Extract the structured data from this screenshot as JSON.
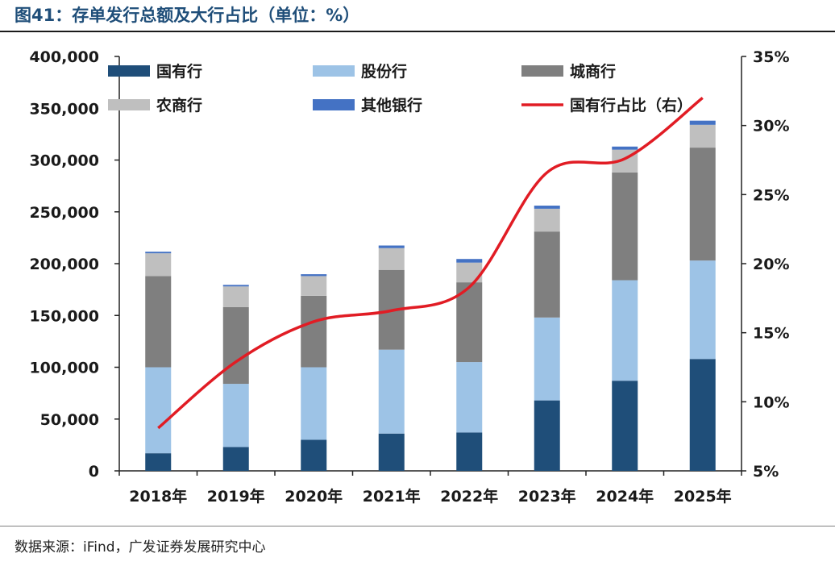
{
  "title": "图41：存单发行总额及大行占比（单位：%）",
  "source": "数据来源：iFind，广发证券发展研究中心",
  "chart_data": {
    "type": "bar",
    "stacked": true,
    "categories": [
      "2018年",
      "2019年",
      "2020年",
      "2021年",
      "2022年",
      "2023年",
      "2024年",
      "2025年"
    ],
    "series": [
      {
        "name": "国有行",
        "color": "#1f4e79",
        "values": [
          17000,
          23000,
          30000,
          36000,
          37000,
          68000,
          87000,
          108000
        ]
      },
      {
        "name": "股份行",
        "color": "#9dc3e6",
        "values": [
          83000,
          61000,
          70000,
          81000,
          68000,
          80000,
          97000,
          95000
        ]
      },
      {
        "name": "城商行",
        "color": "#7f7f7f",
        "values": [
          88000,
          74000,
          69000,
          77000,
          77000,
          83000,
          104000,
          109000
        ]
      },
      {
        "name": "农商行",
        "color": "#bfbfbf",
        "values": [
          22000,
          20000,
          19000,
          21000,
          19000,
          22000,
          22000,
          22000
        ]
      },
      {
        "name": "其他银行",
        "color": "#4472c4",
        "values": [
          1500,
          1500,
          1800,
          2500,
          3500,
          3000,
          3000,
          4000
        ]
      }
    ],
    "line_series": {
      "name": "国有行占比（右）",
      "color": "#e11c24",
      "axis": "right",
      "values": [
        8.1,
        12.9,
        15.8,
        16.6,
        18.3,
        26.6,
        27.6,
        32.0
      ]
    },
    "ylim": [
      0,
      400000
    ],
    "y_ticks": [
      0,
      50000,
      100000,
      150000,
      200000,
      250000,
      300000,
      350000,
      400000
    ],
    "y_tick_labels": [
      "0",
      "50,000",
      "100,000",
      "150,000",
      "200,000",
      "250,000",
      "300,000",
      "350,000",
      "400,000"
    ],
    "y2lim": [
      5,
      35
    ],
    "y2_ticks": [
      5,
      10,
      15,
      20,
      25,
      30,
      35
    ],
    "y2_tick_labels": [
      "5%",
      "10%",
      "15%",
      "20%",
      "25%",
      "30%",
      "35%"
    ],
    "legend": {
      "placement": "top-left",
      "items": [
        {
          "label": "国有行",
          "kind": "bar",
          "color": "#1f4e79"
        },
        {
          "label": "股份行",
          "kind": "bar",
          "color": "#9dc3e6"
        },
        {
          "label": "城商行",
          "kind": "bar",
          "color": "#7f7f7f"
        },
        {
          "label": "农商行",
          "kind": "bar",
          "color": "#bfbfbf"
        },
        {
          "label": "其他银行",
          "kind": "bar",
          "color": "#4472c4"
        },
        {
          "label": "国有行占比（右）",
          "kind": "line",
          "color": "#e11c24"
        }
      ]
    }
  }
}
